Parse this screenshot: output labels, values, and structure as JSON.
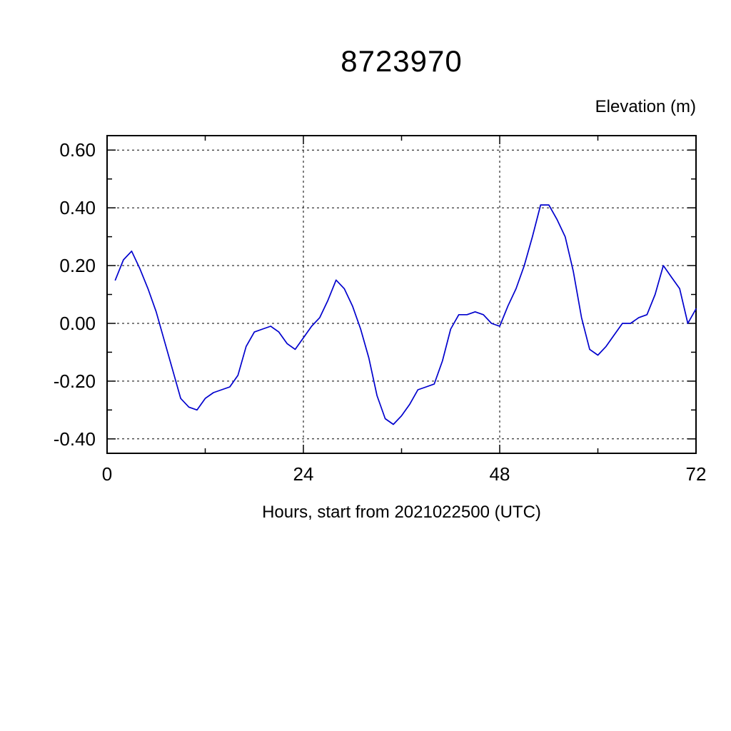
{
  "chart_data": {
    "type": "line",
    "title": "8723970",
    "ylabel": "Elevation (m)",
    "xlabel": "Hours, start from 2021022500 (UTC)",
    "xlim": [
      0,
      72
    ],
    "ylim": [
      -0.45,
      0.65
    ],
    "grid": true,
    "line_color": "#0000cd",
    "xticks": {
      "values": [
        0,
        24,
        48,
        72
      ],
      "labels": [
        "0",
        "24",
        "48",
        "72"
      ]
    },
    "xticks_minor": [
      12,
      36,
      60
    ],
    "yticks": {
      "values": [
        0.6,
        0.4,
        0.2,
        0.0,
        -0.2,
        -0.4
      ],
      "labels": [
        "0.60",
        "0.40",
        "0.20",
        "0.00",
        "-0.20",
        "-0.40"
      ]
    },
    "yticks_minor": [
      0.5,
      0.3,
      0.1,
      -0.1,
      -0.3
    ],
    "series": [
      {
        "name": "elevation",
        "x": [
          1,
          2,
          3,
          4,
          5,
          6,
          7,
          8,
          9,
          10,
          11,
          12,
          13,
          14,
          15,
          16,
          17,
          18,
          19,
          20,
          21,
          22,
          23,
          24,
          25,
          26,
          27,
          28,
          29,
          30,
          31,
          32,
          33,
          34,
          35,
          36,
          37,
          38,
          39,
          40,
          41,
          42,
          43,
          44,
          45,
          46,
          47,
          48,
          49,
          50,
          51,
          52,
          53,
          54,
          55,
          56,
          57,
          58,
          59,
          60,
          61,
          62,
          63,
          64,
          65,
          66,
          67,
          68,
          69,
          70,
          71,
          72
        ],
        "y": [
          0.15,
          0.22,
          0.25,
          0.19,
          0.12,
          0.04,
          -0.06,
          -0.16,
          -0.26,
          -0.29,
          -0.3,
          -0.26,
          -0.24,
          -0.23,
          -0.22,
          -0.18,
          -0.08,
          -0.03,
          -0.02,
          -0.01,
          -0.03,
          -0.07,
          -0.09,
          -0.05,
          -0.01,
          0.02,
          0.08,
          0.15,
          0.12,
          0.06,
          -0.02,
          -0.12,
          -0.25,
          -0.33,
          -0.35,
          -0.32,
          -0.28,
          -0.23,
          -0.22,
          -0.21,
          -0.13,
          -0.02,
          0.03,
          0.03,
          0.04,
          0.03,
          0.0,
          -0.01,
          0.06,
          0.12,
          0.2,
          0.3,
          0.41,
          0.41,
          0.36,
          0.3,
          0.18,
          0.02,
          -0.09,
          -0.11,
          -0.08,
          -0.04,
          0.0,
          0.0,
          0.02,
          0.03,
          0.1,
          0.2,
          0.16,
          0.12,
          0.0,
          0.05
        ]
      }
    ]
  }
}
